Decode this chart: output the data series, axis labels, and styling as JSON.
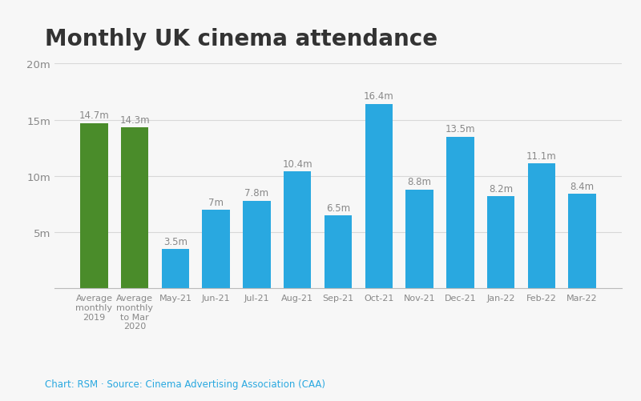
{
  "title": "Monthly UK cinema attendance",
  "categories": [
    "Average\nmonthly\n2019",
    "Average\nmonthly\nto Mar\n2020",
    "May-21",
    "Jun-21",
    "Jul-21",
    "Aug-21",
    "Sep-21",
    "Oct-21",
    "Nov-21",
    "Dec-21",
    "Jan-22",
    "Feb-22",
    "Mar-22"
  ],
  "values": [
    14.7,
    14.3,
    3.5,
    7.0,
    7.8,
    10.4,
    6.5,
    16.4,
    8.8,
    13.5,
    8.2,
    11.1,
    8.4
  ],
  "labels": [
    "14.7m",
    "14.3m",
    "3.5m",
    "7m",
    "7.8m",
    "10.4m",
    "6.5m",
    "16.4m",
    "8.8m",
    "13.5m",
    "8.2m",
    "11.1m",
    "8.4m"
  ],
  "bar_colors": [
    "#4a8c2a",
    "#4a8c2a",
    "#29a8e0",
    "#29a8e0",
    "#29a8e0",
    "#29a8e0",
    "#29a8e0",
    "#29a8e0",
    "#29a8e0",
    "#29a8e0",
    "#29a8e0",
    "#29a8e0",
    "#29a8e0"
  ],
  "ylim": [
    0,
    20
  ],
  "yticks": [
    0,
    5,
    10,
    15,
    20
  ],
  "ytick_labels": [
    "",
    "5m",
    "10m",
    "15m",
    "20m"
  ],
  "background_color": "#f7f7f7",
  "plot_bg_color": "#f7f7f7",
  "caption": "Chart: RSM · Source: Cinema Advertising Association (CAA)",
  "title_fontsize": 20,
  "label_fontsize": 8.5,
  "tick_fontsize": 9.5,
  "caption_color": "#29a8e0",
  "caption_fontsize": 8.5,
  "grid_color": "#d8d8d8",
  "spine_color": "#bbbbbb",
  "text_color": "#888888",
  "title_color": "#333333"
}
